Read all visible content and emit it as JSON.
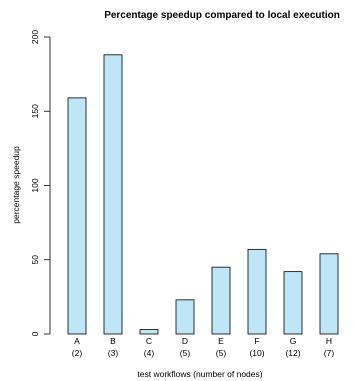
{
  "chart_data": {
    "type": "bar",
    "title": "Percentage speedup compared to local execution",
    "xlabel": "test workflows (number of nodes)",
    "ylabel": "percentage speedup",
    "ylim": [
      0,
      200
    ],
    "yticks": [
      "0",
      "50",
      "100",
      "150",
      "200"
    ],
    "categories": [
      "A",
      "B",
      "C",
      "D",
      "E",
      "F",
      "G",
      "H"
    ],
    "category_sublabels": [
      "(2)",
      "(3)",
      "(4)",
      "(5)",
      "(5)",
      "(10)",
      "(12)",
      "(7)"
    ],
    "values": [
      159,
      188,
      3,
      23,
      45,
      57,
      42,
      54
    ],
    "bar_color": "#bfe6f7",
    "grid": false
  }
}
